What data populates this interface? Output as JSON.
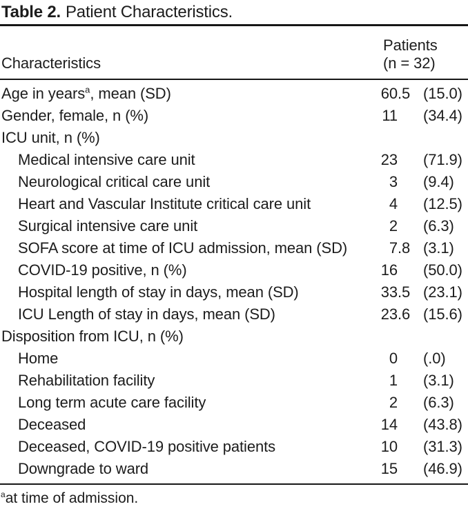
{
  "title": {
    "label": "Table 2.",
    "text": "Patient Characteristics."
  },
  "header": {
    "characteristics": "Characteristics",
    "patients_line1": "Patients",
    "patients_line2": "(n = 32)"
  },
  "rows": [
    {
      "label": "Age in years",
      "sup": "a",
      "post": ", mean (SD)",
      "n": "60.5",
      "pct": "(15.0)",
      "indent": false
    },
    {
      "label": "Gender, female, n (%)",
      "n": "11",
      "pct": "(34.4)",
      "indent": false
    },
    {
      "label": "ICU unit, n (%)",
      "n": "",
      "pct": "",
      "indent": false
    },
    {
      "label": "Medical intensive care unit",
      "n": "23",
      "pct": "(71.9)",
      "indent": true
    },
    {
      "label": "Neurological critical care unit",
      "n": "3",
      "pct": "(9.4)",
      "indent": true
    },
    {
      "label": "Heart and Vascular Institute critical care unit",
      "n": "4",
      "pct": "(12.5)",
      "indent": true
    },
    {
      "label": "Surgical intensive care unit",
      "n": "2",
      "pct": "(6.3)",
      "indent": true
    },
    {
      "label": "SOFA score at time of ICU admission, mean (SD)",
      "n": "7.8",
      "pct": "(3.1)",
      "indent": true
    },
    {
      "label": "COVID-19 positive, n (%)",
      "n": "16",
      "pct": "(50.0)",
      "indent": true
    },
    {
      "label": "Hospital length of stay in days, mean (SD)",
      "n": "33.5",
      "pct": "(23.1)",
      "indent": true
    },
    {
      "label": "ICU Length of stay in days, mean (SD)",
      "n": "23.6",
      "pct": "(15.6)",
      "indent": true
    },
    {
      "label": "Disposition from ICU, n (%)",
      "n": "",
      "pct": "",
      "indent": false
    },
    {
      "label": "Home",
      "n": "0",
      "pct": "(.0)",
      "indent": true
    },
    {
      "label": "Rehabilitation facility",
      "n": "1",
      "pct": "(3.1)",
      "indent": true
    },
    {
      "label": "Long term acute care facility",
      "n": "2",
      "pct": "(6.3)",
      "indent": true
    },
    {
      "label": "Deceased",
      "n": "14",
      "pct": "(43.8)",
      "indent": true
    },
    {
      "label": "Deceased, COVID-19 positive patients",
      "n": "10",
      "pct": "(31.3)",
      "indent": true
    },
    {
      "label": "Downgrade to ward",
      "n": "15",
      "pct": "(46.9)",
      "indent": true
    }
  ],
  "footnote": {
    "sup": "a",
    "text": "at time of admission."
  },
  "colors": {
    "text": "#1c1c1c",
    "rule": "#161616",
    "background": "#ffffff"
  }
}
